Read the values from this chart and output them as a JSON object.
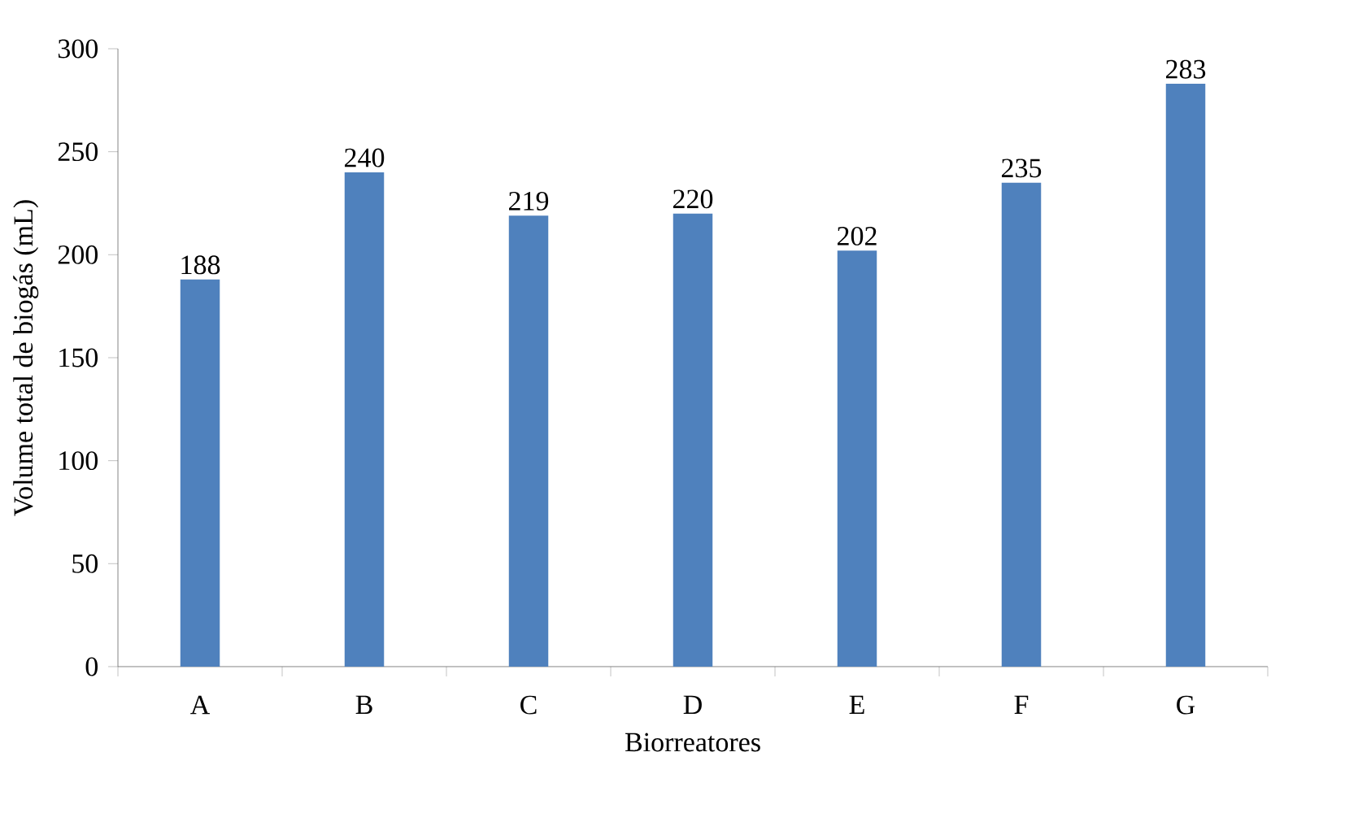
{
  "chart_data": {
    "type": "bar",
    "xlabel": "Biorreatores",
    "ylabel": "Volume total de biogás (mL)",
    "categories": [
      "A",
      "B",
      "C",
      "D",
      "E",
      "F",
      "G"
    ],
    "values": [
      188,
      240,
      219,
      220,
      202,
      235,
      283
    ],
    "color": "#4f81bd",
    "ylim": [
      0,
      300
    ],
    "yticks": [
      0,
      50,
      100,
      150,
      200,
      250,
      300
    ],
    "data_labels": true
  }
}
